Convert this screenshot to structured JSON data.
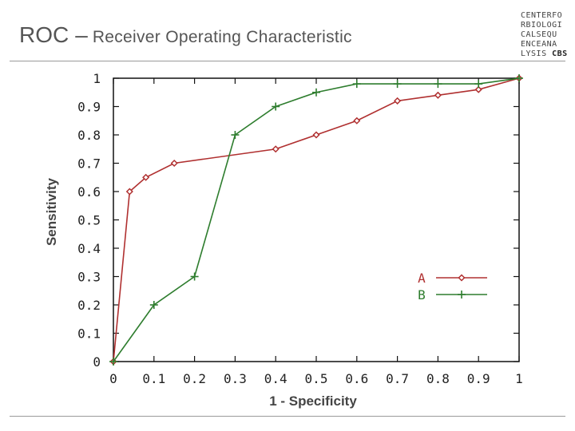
{
  "slide": {
    "title_main": "ROC",
    "title_dash": "–",
    "title_sub": "Receiver Operating Characteristic"
  },
  "logo": {
    "lines": [
      "CENTERFO",
      "RBIOLOGI",
      "CALSEQU",
      "ENCEANA"
    ],
    "last_line_prefix": "LYSIS",
    "last_line_bold": "CBS"
  },
  "chart_data": {
    "type": "line",
    "xlabel": "1 - Specificity",
    "ylabel": "Sensitivity",
    "xlim": [
      0,
      1
    ],
    "ylim": [
      0,
      1
    ],
    "x_ticks": [
      "0",
      "0.1",
      "0.2",
      "0.3",
      "0.4",
      "0.5",
      "0.6",
      "0.7",
      "0.8",
      "0.9",
      "1"
    ],
    "y_ticks": [
      "0",
      "0.1",
      "0.2",
      "0.3",
      "0.4",
      "0.5",
      "0.6",
      "0.7",
      "0.8",
      "0.9",
      "1"
    ],
    "grid": false,
    "legend_position": "bottom-right",
    "series": [
      {
        "name": "A",
        "color": "#b03030",
        "marker": "diamond",
        "x": [
          0,
          0.04,
          0.08,
          0.15,
          0.4,
          0.5,
          0.6,
          0.7,
          0.8,
          0.9,
          1
        ],
        "y": [
          0,
          0.6,
          0.65,
          0.7,
          0.75,
          0.8,
          0.85,
          0.92,
          0.94,
          0.96,
          1
        ]
      },
      {
        "name": "B",
        "color": "#2e7d2e",
        "marker": "plus",
        "x": [
          0,
          0.1,
          0.2,
          0.3,
          0.4,
          0.5,
          0.6,
          0.7,
          0.8,
          0.9,
          1
        ],
        "y": [
          0,
          0.2,
          0.3,
          0.8,
          0.9,
          0.95,
          0.98,
          0.98,
          0.98,
          0.98,
          1
        ]
      }
    ]
  }
}
